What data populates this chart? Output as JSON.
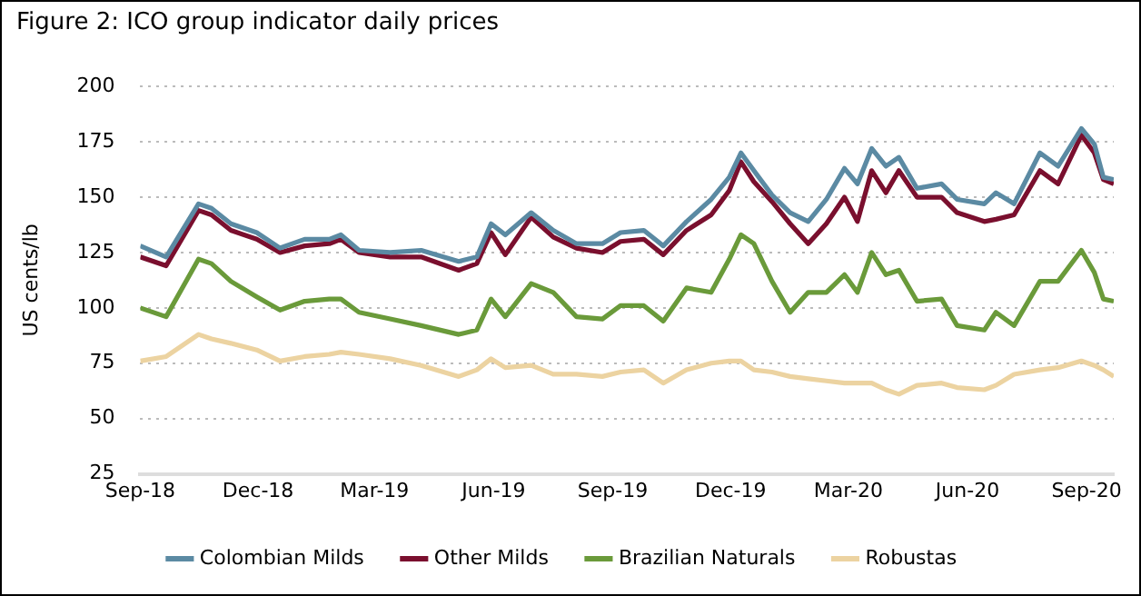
{
  "chart_data": {
    "type": "line",
    "title": "Figure 2: ICO group indicator daily prices",
    "ylabel": "US cents/lb",
    "x": [
      "2018-09-01",
      "2018-09-21",
      "2018-10-16",
      "2018-10-26",
      "2018-11-10",
      "2018-11-30",
      "2018-12-18",
      "2019-01-06",
      "2019-01-25",
      "2019-02-03",
      "2019-02-17",
      "2019-03-13",
      "2019-04-06",
      "2019-05-05",
      "2019-05-19",
      "2019-05-30",
      "2019-06-10",
      "2019-06-30",
      "2019-07-17",
      "2019-08-04",
      "2019-08-24",
      "2019-09-07",
      "2019-09-25",
      "2019-10-10",
      "2019-10-28",
      "2019-11-16",
      "2019-11-30",
      "2019-12-09",
      "2019-12-19",
      "2020-01-02",
      "2020-01-16",
      "2020-01-30",
      "2020-02-13",
      "2020-02-27",
      "2020-03-08",
      "2020-03-19",
      "2020-03-30",
      "2020-04-09",
      "2020-04-23",
      "2020-05-12",
      "2020-05-24",
      "2020-06-14",
      "2020-06-23",
      "2020-07-07",
      "2020-07-27",
      "2020-08-10",
      "2020-08-28",
      "2020-09-07",
      "2020-09-14",
      "2020-09-22"
    ],
    "series": [
      {
        "name": "Colombian Milds",
        "color": "#5b8aa3",
        "values": [
          128,
          123,
          147,
          145,
          138,
          134,
          127,
          131,
          131,
          133,
          126,
          125,
          126,
          121,
          123,
          138,
          133,
          143,
          135,
          129,
          129,
          134,
          135,
          128,
          139,
          149,
          159,
          170,
          162,
          151,
          143,
          139,
          149,
          163,
          156,
          172,
          164,
          168,
          154,
          156,
          149,
          147,
          152,
          147,
          170,
          164,
          181,
          174,
          159,
          158
        ]
      },
      {
        "name": "Other Milds",
        "color": "#7a0f2e",
        "values": [
          123,
          119,
          144,
          142,
          135,
          131,
          125,
          128,
          129,
          131,
          125,
          123,
          123,
          117,
          120,
          134,
          124,
          141,
          132,
          127,
          125,
          130,
          131,
          124,
          135,
          142,
          153,
          166,
          157,
          148,
          138,
          129,
          138,
          150,
          139,
          162,
          152,
          162,
          150,
          150,
          143,
          139,
          140,
          142,
          162,
          156,
          178,
          170,
          158,
          156
        ]
      },
      {
        "name": "Brazilian Naturals",
        "color": "#6a9a3a",
        "values": [
          100,
          96,
          122,
          120,
          112,
          105,
          99,
          103,
          104,
          104,
          98,
          95,
          92,
          88,
          90,
          104,
          96,
          111,
          107,
          96,
          95,
          101,
          101,
          94,
          109,
          107,
          122,
          133,
          129,
          112,
          98,
          107,
          107,
          115,
          107,
          125,
          115,
          117,
          103,
          104,
          92,
          90,
          98,
          92,
          112,
          112,
          126,
          116,
          104,
          103
        ]
      },
      {
        "name": "Robustas",
        "color": "#ecd3a1",
        "values": [
          76,
          78,
          88,
          86,
          84,
          81,
          76,
          78,
          79,
          80,
          79,
          77,
          74,
          69,
          72,
          77,
          73,
          74,
          70,
          70,
          69,
          71,
          72,
          66,
          72,
          75,
          76,
          76,
          72,
          71,
          69,
          68,
          67,
          66,
          66,
          66,
          63,
          61,
          65,
          66,
          64,
          63,
          65,
          70,
          72,
          73,
          76,
          74,
          72,
          69
        ]
      }
    ],
    "xlim": [
      "2018-09-01",
      "2020-09-22"
    ],
    "xticks": [
      {
        "value": "2018-09-01",
        "label": "Sep-18"
      },
      {
        "value": "2018-12-01",
        "label": "Dec-18"
      },
      {
        "value": "2019-03-01",
        "label": "Mar-19"
      },
      {
        "value": "2019-06-01",
        "label": "Jun-19"
      },
      {
        "value": "2019-09-01",
        "label": "Sep-19"
      },
      {
        "value": "2019-12-01",
        "label": "Dec-19"
      },
      {
        "value": "2020-03-01",
        "label": "Mar-20"
      },
      {
        "value": "2020-06-01",
        "label": "Jun-20"
      },
      {
        "value": "2020-09-01",
        "label": "Sep-20"
      }
    ],
    "ylim": [
      25,
      200
    ],
    "yticks": [
      25,
      50,
      75,
      100,
      125,
      150,
      175,
      200
    ],
    "grid": "y",
    "legend": "bottom"
  }
}
